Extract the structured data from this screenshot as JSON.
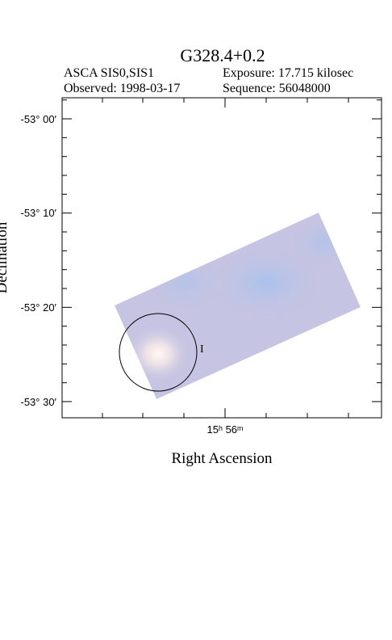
{
  "header": {
    "title": "G328.4+0.2",
    "instrument": "ASCA SIS0,SIS1",
    "exposure": "Exposure: 17.715 kilosec",
    "observed": "Observed: 1998-03-17",
    "sequence": "Sequence: 56048000"
  },
  "plot": {
    "y_tick_labels": [
      "-53° 00′",
      "-53° 10′",
      "-53° 20′",
      "-53° 30′"
    ],
    "x_tick_labels": [
      "15ʰ 56ᵐ"
    ],
    "x_label": "Right Ascension",
    "y_label": "Declination",
    "source_label": "I"
  }
}
